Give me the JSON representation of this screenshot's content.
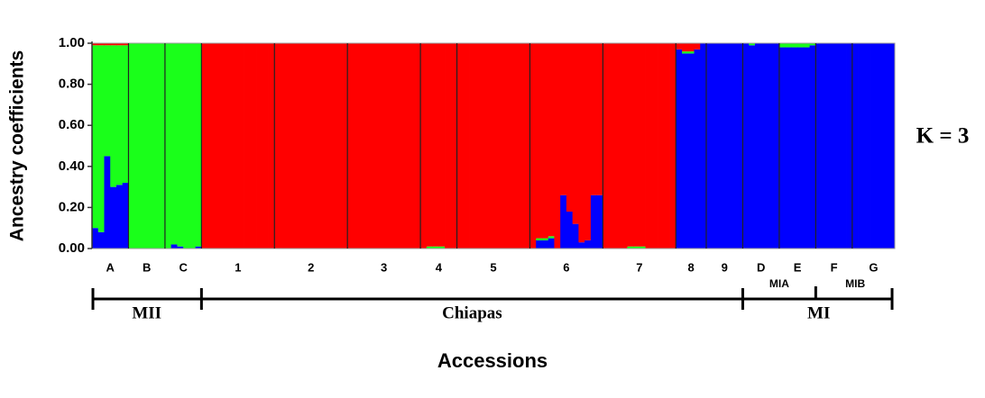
{
  "chart_data": {
    "type": "structure",
    "annotation": "K = 3",
    "ylabel": "Ancestry coefficients",
    "xlabel": "Accessions",
    "ylim": [
      0,
      1
    ],
    "yticks": [
      {
        "value": 0,
        "label": "0.00"
      },
      {
        "value": 0.2,
        "label": "0.20"
      },
      {
        "value": 0.4,
        "label": "0.40"
      },
      {
        "value": 0.6,
        "label": "0.60"
      },
      {
        "value": 0.8,
        "label": "0.80"
      },
      {
        "value": 1,
        "label": "1.00"
      }
    ],
    "categories": [
      null,
      null,
      null,
      null,
      null,
      null,
      null,
      null,
      null,
      null,
      null,
      null,
      null,
      null,
      null,
      null,
      null,
      null,
      null,
      null,
      null,
      null,
      null,
      null,
      null,
      null,
      null,
      null,
      null,
      null,
      null,
      null,
      null,
      null,
      null,
      null,
      null,
      null,
      null,
      null,
      null,
      null,
      null,
      null,
      null,
      null,
      null,
      null,
      null,
      null,
      null,
      null,
      null,
      null,
      null,
      null,
      null,
      null,
      null,
      null,
      null,
      null,
      null,
      null,
      null,
      null,
      null,
      null,
      null,
      null,
      null,
      null,
      null,
      null,
      null,
      null,
      null,
      null,
      null,
      null,
      null,
      null,
      null,
      null,
      null,
      null,
      null,
      null,
      null,
      null,
      null,
      null,
      null,
      null,
      null,
      null,
      null,
      null,
      null,
      null,
      null,
      null,
      null,
      null,
      null,
      null,
      null,
      null,
      null,
      null,
      null,
      null,
      null,
      null,
      null,
      null,
      null,
      null,
      null,
      null,
      null,
      null,
      null,
      null,
      null,
      null,
      null,
      null,
      null,
      null,
      null,
      null
    ],
    "populations": [
      {
        "label": "A",
        "size": 6
      },
      {
        "label": "B",
        "size": 6
      },
      {
        "label": "C",
        "size": 6
      },
      {
        "label": "1",
        "size": 12
      },
      {
        "label": "2",
        "size": 12
      },
      {
        "label": "3",
        "size": 12
      },
      {
        "label": "4",
        "size": 6
      },
      {
        "label": "5",
        "size": 12
      },
      {
        "label": "6",
        "size": 12
      },
      {
        "label": "7",
        "size": 12
      },
      {
        "label": "8",
        "size": 5
      },
      {
        "label": "9",
        "size": 6
      },
      {
        "label": "D",
        "size": 6
      },
      {
        "label": "E",
        "size": 6
      },
      {
        "label": "F",
        "size": 6
      },
      {
        "label": "G",
        "size": 7
      }
    ],
    "groups": [
      {
        "label": "MII",
        "span": 3
      },
      {
        "label": "Chiapas",
        "span": 9
      },
      {
        "label": "MI",
        "span": 4
      }
    ],
    "subgroups": [
      {
        "label": "MIA",
        "start": 12,
        "span": 2
      },
      {
        "label": "MIB",
        "start": 14,
        "span": 2
      }
    ],
    "series": [
      {
        "color": "#0000ff",
        "values": [
          0.1,
          0.08,
          0.45,
          0.3,
          0.31,
          0.32,
          0,
          0,
          0,
          0,
          0,
          0,
          0,
          0.02,
          0.01,
          0,
          0,
          0.01,
          0,
          0,
          0,
          0,
          0,
          0,
          0,
          0,
          0,
          0,
          0,
          0,
          0,
          0,
          0,
          0,
          0,
          0,
          0,
          0,
          0,
          0,
          0,
          0,
          0,
          0,
          0,
          0,
          0,
          0,
          0,
          0,
          0,
          0,
          0,
          0,
          0,
          0,
          0,
          0,
          0,
          0,
          0,
          0,
          0,
          0,
          0,
          0,
          0,
          0,
          0,
          0,
          0,
          0,
          0,
          0.04,
          0.04,
          0.05,
          0,
          0.26,
          0.18,
          0.12,
          0.03,
          0.04,
          0.26,
          0.26,
          0,
          0,
          0,
          0,
          0,
          0,
          0,
          0,
          0,
          0,
          0,
          0,
          0.97,
          0.95,
          0.95,
          0.97,
          1,
          1,
          1,
          1,
          1,
          1,
          1,
          1,
          0.99,
          1,
          1,
          1,
          1,
          0.98,
          0.98,
          0.98,
          0.98,
          0.98,
          0.99,
          1,
          1,
          1,
          1,
          1,
          1,
          1,
          1,
          1,
          1,
          1,
          1,
          1
        ]
      },
      {
        "color": "#1aff1a",
        "values": [
          0.89,
          0.91,
          0.54,
          0.69,
          0.68,
          0.67,
          1,
          1,
          1,
          1,
          1,
          1,
          1,
          0.98,
          0.99,
          1,
          1,
          0.99,
          0,
          0,
          0,
          0,
          0,
          0,
          0,
          0,
          0,
          0,
          0,
          0,
          0,
          0,
          0,
          0,
          0,
          0,
          0,
          0,
          0,
          0,
          0,
          0,
          0,
          0,
          0,
          0,
          0,
          0,
          0,
          0,
          0,
          0,
          0,
          0,
          0,
          0.01,
          0.01,
          0.01,
          0,
          0,
          0,
          0,
          0,
          0,
          0,
          0,
          0,
          0,
          0,
          0,
          0,
          0,
          0,
          0.01,
          0.01,
          0.01,
          0,
          0,
          0,
          0,
          0,
          0,
          0,
          0,
          0,
          0,
          0,
          0,
          0.01,
          0.01,
          0.01,
          0,
          0,
          0,
          0,
          0,
          0,
          0.01,
          0.01,
          0,
          0,
          0,
          0,
          0,
          0,
          0,
          0,
          0,
          0.01,
          0,
          0,
          0,
          0,
          0.02,
          0.02,
          0.02,
          0.02,
          0.02,
          0.01,
          0,
          0,
          0,
          0,
          0,
          0,
          0,
          0,
          0,
          0,
          0,
          0,
          0
        ]
      },
      {
        "color": "#ff0000",
        "values": [
          0.01,
          0.01,
          0.01,
          0.01,
          0.01,
          0.01,
          0,
          0,
          0,
          0,
          0,
          0,
          0,
          0,
          0,
          0,
          0,
          0,
          1,
          1,
          1,
          1,
          1,
          1,
          1,
          1,
          1,
          1,
          1,
          1,
          1,
          1,
          1,
          1,
          1,
          1,
          1,
          1,
          1,
          1,
          1,
          1,
          1,
          1,
          1,
          1,
          1,
          1,
          1,
          1,
          1,
          1,
          1,
          1,
          1,
          0.99,
          0.99,
          0.99,
          1,
          1,
          1,
          1,
          1,
          1,
          1,
          1,
          1,
          1,
          1,
          1,
          1,
          1,
          1,
          0.95,
          0.95,
          0.94,
          1,
          0.74,
          0.82,
          0.88,
          0.97,
          0.96,
          0.74,
          0.74,
          1,
          1,
          1,
          1,
          0.99,
          0.99,
          0.99,
          1,
          1,
          1,
          1,
          1,
          0.03,
          0.04,
          0.04,
          0.03,
          0,
          0,
          0,
          0,
          0,
          0,
          0,
          0,
          0,
          0,
          0,
          0,
          0,
          0,
          0,
          0,
          0,
          0,
          0,
          0,
          0,
          0,
          0,
          0,
          0,
          0,
          0,
          0,
          0,
          0,
          0,
          0
        ]
      }
    ]
  }
}
